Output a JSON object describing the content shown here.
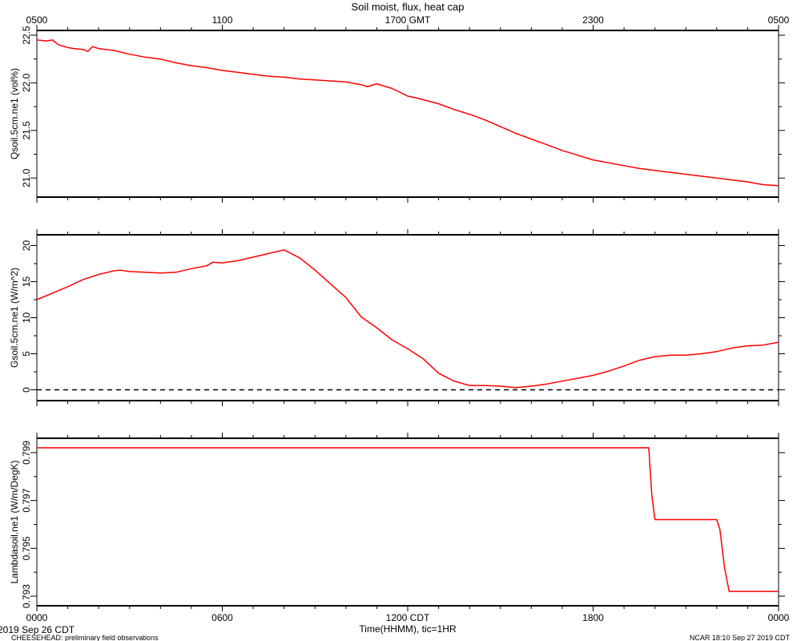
{
  "title": "Soil moist, flux, heat cap",
  "top_axis": {
    "tick_labels": [
      "0500",
      "1100",
      "1700 GMT",
      "2300",
      "0500"
    ]
  },
  "bottom_axis": {
    "tick_labels": [
      "0000",
      "0600",
      "1200 CDT",
      "1800",
      "0000"
    ],
    "label": "Time(HHMM), tic=1HR"
  },
  "footer": {
    "date_left": "2019 Sep 26 CDT",
    "project_left": "CHEESEHEAD: preliminary field observations",
    "stamp_right": "NCAR 18:10 Sep 27 2019 CDT"
  },
  "line_color": "#ff0000",
  "chart_data": [
    {
      "type": "line",
      "ylabel": "Qsoil.5cm.ne1 (vol%)",
      "ylim": [
        20.8,
        22.55
      ],
      "yticks": [
        21.0,
        21.5,
        22.0,
        22.5
      ],
      "ytick_labels": [
        "21.0",
        "21.5",
        "22.0",
        "22.5"
      ],
      "x_unit": "hours since 0000 CDT",
      "xlim": [
        0,
        24
      ],
      "series": [
        {
          "x": [
            0,
            0.3,
            0.5,
            0.7,
            1.0,
            1.2,
            1.5,
            1.65,
            1.8,
            2.0,
            2.5,
            3.0,
            3.5,
            4.0,
            4.5,
            5.0,
            5.5,
            6.0,
            6.5,
            7.0,
            7.5,
            8.0,
            8.5,
            9.0,
            9.5,
            10.0,
            10.5,
            10.7,
            11.0,
            11.5,
            12.0,
            12.3,
            13.0,
            13.5,
            14.0,
            14.5,
            15.0,
            15.5,
            16.0,
            16.5,
            17.0,
            17.5,
            18.0,
            18.5,
            19.0,
            19.5,
            20.0,
            20.5,
            21.0,
            21.5,
            22.0,
            22.5,
            23.0,
            23.5,
            24.0
          ],
          "y": [
            22.45,
            22.44,
            22.45,
            22.4,
            22.37,
            22.36,
            22.35,
            22.33,
            22.38,
            22.36,
            22.34,
            22.3,
            22.27,
            22.25,
            22.21,
            22.18,
            22.16,
            22.13,
            22.11,
            22.09,
            22.07,
            22.06,
            22.04,
            22.03,
            22.02,
            22.01,
            21.98,
            21.96,
            21.99,
            21.94,
            21.86,
            21.84,
            21.78,
            21.72,
            21.67,
            21.61,
            21.54,
            21.47,
            21.41,
            21.35,
            21.29,
            21.24,
            21.19,
            21.16,
            21.13,
            21.1,
            21.08,
            21.06,
            21.04,
            21.02,
            21.0,
            20.98,
            20.96,
            20.93,
            20.92
          ]
        }
      ]
    },
    {
      "type": "line",
      "ylabel": "Gsoil.5cm.ne1 (W/m^2)",
      "ylim": [
        -1.5,
        21.5
      ],
      "yticks": [
        0,
        5,
        10,
        15,
        20
      ],
      "ytick_labels": [
        "0",
        "5",
        "10",
        "15",
        "20"
      ],
      "reference_line": 0,
      "x_unit": "hours since 0000 CDT",
      "xlim": [
        0,
        24
      ],
      "series": [
        {
          "x": [
            0,
            0.5,
            1.0,
            1.5,
            2.0,
            2.5,
            2.7,
            3.0,
            3.5,
            4.0,
            4.5,
            5.0,
            5.5,
            5.7,
            6.0,
            6.5,
            7.0,
            7.5,
            8.0,
            8.5,
            9.0,
            9.5,
            10.0,
            10.5,
            11.0,
            11.5,
            12.0,
            12.5,
            13.0,
            13.5,
            14.0,
            14.5,
            15.0,
            15.5,
            16.0,
            16.5,
            17.0,
            17.5,
            18.0,
            18.5,
            19.0,
            19.5,
            20.0,
            20.5,
            21.0,
            21.5,
            22.0,
            22.5,
            23.0,
            23.5,
            24.0
          ],
          "y": [
            12.5,
            13.4,
            14.3,
            15.3,
            16.0,
            16.5,
            16.6,
            16.4,
            16.3,
            16.2,
            16.3,
            16.8,
            17.2,
            17.7,
            17.6,
            17.9,
            18.4,
            18.9,
            19.4,
            18.3,
            16.6,
            14.7,
            12.8,
            10.1,
            8.6,
            6.9,
            5.7,
            4.3,
            2.3,
            1.2,
            0.6,
            0.6,
            0.5,
            0.3,
            0.5,
            0.8,
            1.2,
            1.6,
            2.0,
            2.6,
            3.3,
            4.1,
            4.6,
            4.8,
            4.8,
            5.0,
            5.3,
            5.8,
            6.1,
            6.2,
            6.6
          ]
        }
      ]
    },
    {
      "type": "line",
      "ylabel": "Lambdasoil.ne1 (W/m/DegK)",
      "ylim": [
        0.7926,
        0.7996
      ],
      "yticks": [
        0.793,
        0.795,
        0.797,
        0.799
      ],
      "ytick_labels": [
        "0.793",
        "0.795",
        "0.797",
        "0.799"
      ],
      "x_unit": "hours since 0000 CDT",
      "xlim": [
        0,
        24
      ],
      "series": [
        {
          "x": [
            0,
            19.8,
            19.9,
            20.0,
            22.0,
            22.1,
            22.25,
            22.4,
            24.0
          ],
          "y": [
            0.7992,
            0.7992,
            0.7972,
            0.7962,
            0.7962,
            0.7958,
            0.7942,
            0.7932,
            0.7932
          ]
        }
      ]
    }
  ]
}
